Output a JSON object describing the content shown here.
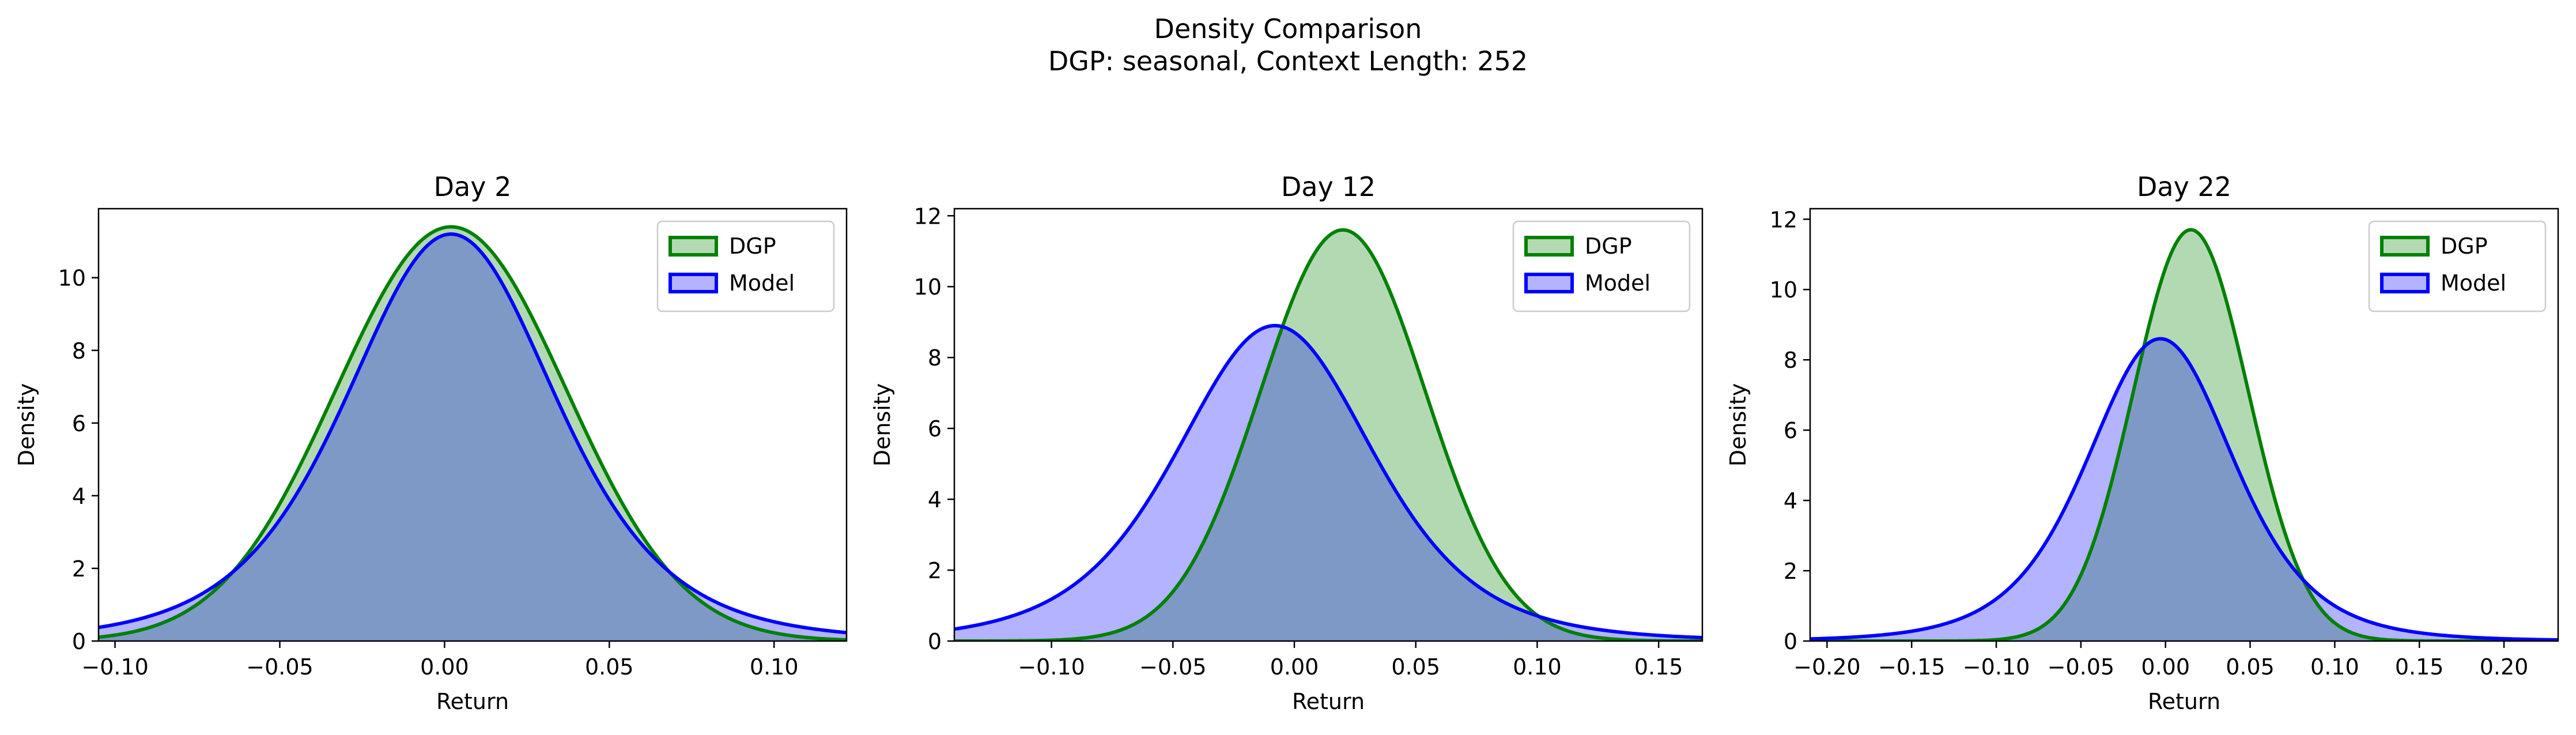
{
  "figure": {
    "title": "Density Comparison",
    "subtitle": "DGP: seasonal, Context Length: 252"
  },
  "colors": {
    "dgp_line": "#008000",
    "dgp_fill": "#b3d9b3",
    "model_line": "#0000ff",
    "model_fill": "#b3b3ff",
    "overlap_fill": "#7f99c7"
  },
  "chart_data": [
    {
      "type": "area",
      "title": "Day 2",
      "xlabel": "Return",
      "ylabel": "Density",
      "xlim": [
        -0.105,
        0.122
      ],
      "ylim": [
        0,
        11.9
      ],
      "xticks": [
        -0.1,
        -0.05,
        0.0,
        0.05,
        0.1
      ],
      "xtick_labels": [
        "−0.10",
        "−0.05",
        "0.00",
        "0.05",
        "0.10"
      ],
      "yticks": [
        0,
        2,
        4,
        6,
        8,
        10
      ],
      "ytick_labels": [
        "0",
        "2",
        "4",
        "6",
        "8",
        "10"
      ],
      "legend": "top-right",
      "series": [
        {
          "name": "DGP",
          "dist": "normal",
          "mean": 0.002,
          "sd": 0.035,
          "peak": 11.4
        },
        {
          "name": "Model",
          "dist": "student-t",
          "mean": 0.002,
          "scale": 0.033,
          "df": 5,
          "peak": 11.2
        }
      ]
    },
    {
      "type": "area",
      "title": "Day 12",
      "xlabel": "Return",
      "ylabel": "Density",
      "xlim": [
        -0.14,
        0.168
      ],
      "ylim": [
        0,
        12.2
      ],
      "xticks": [
        -0.1,
        -0.05,
        0.0,
        0.05,
        0.1,
        0.15
      ],
      "xtick_labels": [
        "−0.10",
        "−0.05",
        "0.00",
        "0.05",
        "0.10",
        "0.15"
      ],
      "yticks": [
        0,
        2,
        4,
        6,
        8,
        10,
        12
      ],
      "ytick_labels": [
        "0",
        "2",
        "4",
        "6",
        "8",
        "10",
        "12"
      ],
      "legend": "top-right",
      "series": [
        {
          "name": "DGP",
          "dist": "normal",
          "mean": 0.02,
          "sd": 0.034,
          "peak": 11.6
        },
        {
          "name": "Model",
          "dist": "student-t",
          "mean": -0.008,
          "scale": 0.042,
          "df": 5,
          "peak": 8.9
        }
      ]
    },
    {
      "type": "area",
      "title": "Day 22",
      "xlabel": "Return",
      "ylabel": "Density",
      "xlim": [
        -0.21,
        0.232
      ],
      "ylim": [
        0,
        12.3
      ],
      "xticks": [
        -0.2,
        -0.15,
        -0.1,
        -0.05,
        0.0,
        0.05,
        0.1,
        0.15,
        0.2
      ],
      "xtick_labels": [
        "−0.20",
        "−0.15",
        "−0.10",
        "−0.05",
        "0.00",
        "0.05",
        "0.10",
        "0.15",
        "0.20"
      ],
      "yticks": [
        0,
        2,
        4,
        6,
        8,
        10,
        12
      ],
      "ytick_labels": [
        "0",
        "2",
        "4",
        "6",
        "8",
        "10",
        "12"
      ],
      "legend": "top-right",
      "series": [
        {
          "name": "DGP",
          "dist": "normal",
          "mean": 0.015,
          "sd": 0.034,
          "peak": 11.7
        },
        {
          "name": "Model",
          "dist": "student-t",
          "mean": -0.003,
          "scale": 0.045,
          "df": 5,
          "peak": 8.6
        }
      ]
    }
  ]
}
